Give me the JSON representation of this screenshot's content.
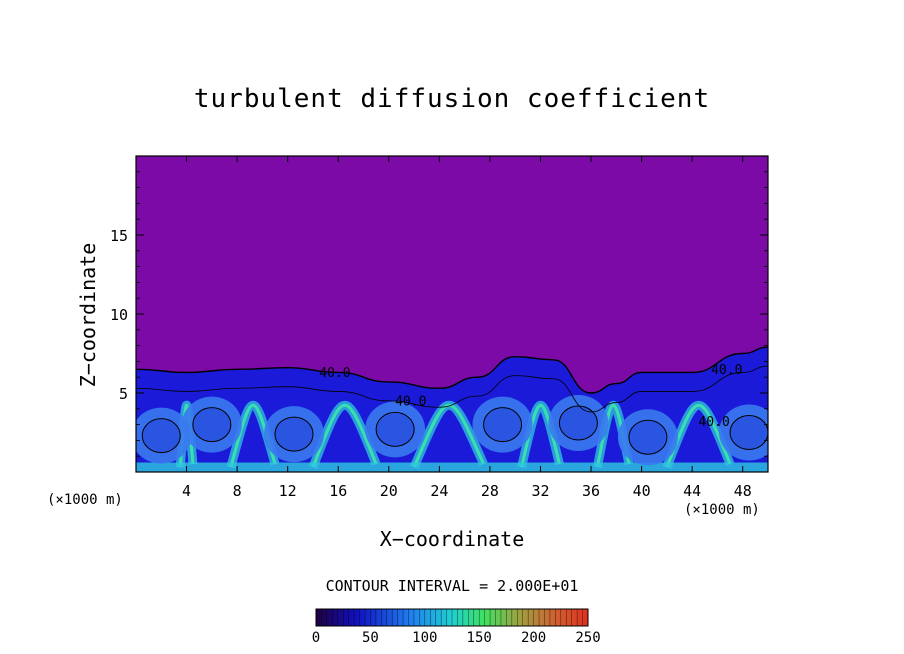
{
  "title": "turbulent diffusion coefficient",
  "xlabel": "X−coordinate",
  "ylabel": "Z−coordinate",
  "x_unit": "(×1000 m)",
  "contour_interval": "CONTOUR INTERVAL = 2.000E+01",
  "colors": {
    "background": "#7b0aa6",
    "low": "#1a1ad8",
    "mid": "#3a7af0",
    "high": "#30c8e0",
    "peak": "#40f0a0"
  },
  "chart_data": {
    "type": "heatmap",
    "title": "turbulent diffusion coefficient",
    "xlabel": "X−coordinate",
    "ylabel": "Z−coordinate",
    "x_unit": "(×1000 m)",
    "xlim": [
      0,
      50
    ],
    "ylim": [
      0,
      20
    ],
    "x_ticks": [
      4,
      8,
      12,
      16,
      20,
      24,
      28,
      32,
      36,
      40,
      44,
      48
    ],
    "y_ticks": [
      5,
      10,
      15
    ],
    "contour_labels": [
      {
        "text": "40.0",
        "x": 14.5,
        "z": 6.0
      },
      {
        "text": "40.0",
        "x": 45.5,
        "z": 6.2
      },
      {
        "text": "40.0",
        "x": 20.5,
        "z": 4.2
      },
      {
        "text": "40.0",
        "x": 44.5,
        "z": 2.9
      }
    ],
    "turbulent_layer_top": [
      {
        "x": 0,
        "z": 6.5
      },
      {
        "x": 4,
        "z": 6.3
      },
      {
        "x": 8,
        "z": 6.5
      },
      {
        "x": 12,
        "z": 6.6
      },
      {
        "x": 16,
        "z": 6.3
      },
      {
        "x": 20,
        "z": 5.7
      },
      {
        "x": 24,
        "z": 5.3
      },
      {
        "x": 27,
        "z": 6.0
      },
      {
        "x": 30,
        "z": 7.3
      },
      {
        "x": 33,
        "z": 7.1
      },
      {
        "x": 36,
        "z": 5.0
      },
      {
        "x": 38,
        "z": 5.6
      },
      {
        "x": 40,
        "z": 6.3
      },
      {
        "x": 44,
        "z": 6.3
      },
      {
        "x": 48,
        "z": 7.5
      },
      {
        "x": 50,
        "z": 7.9
      }
    ],
    "eddies": [
      {
        "x": 2,
        "z": 2.3
      },
      {
        "x": 6,
        "z": 3.0
      },
      {
        "x": 12.5,
        "z": 2.4
      },
      {
        "x": 20.5,
        "z": 2.7
      },
      {
        "x": 29,
        "z": 3.0
      },
      {
        "x": 35,
        "z": 3.1
      },
      {
        "x": 40.5,
        "z": 2.2
      },
      {
        "x": 48.5,
        "z": 2.5
      }
    ],
    "colorbar": {
      "ticks": [
        0,
        50,
        100,
        150,
        200,
        250
      ],
      "range": [
        0,
        250
      ]
    }
  }
}
